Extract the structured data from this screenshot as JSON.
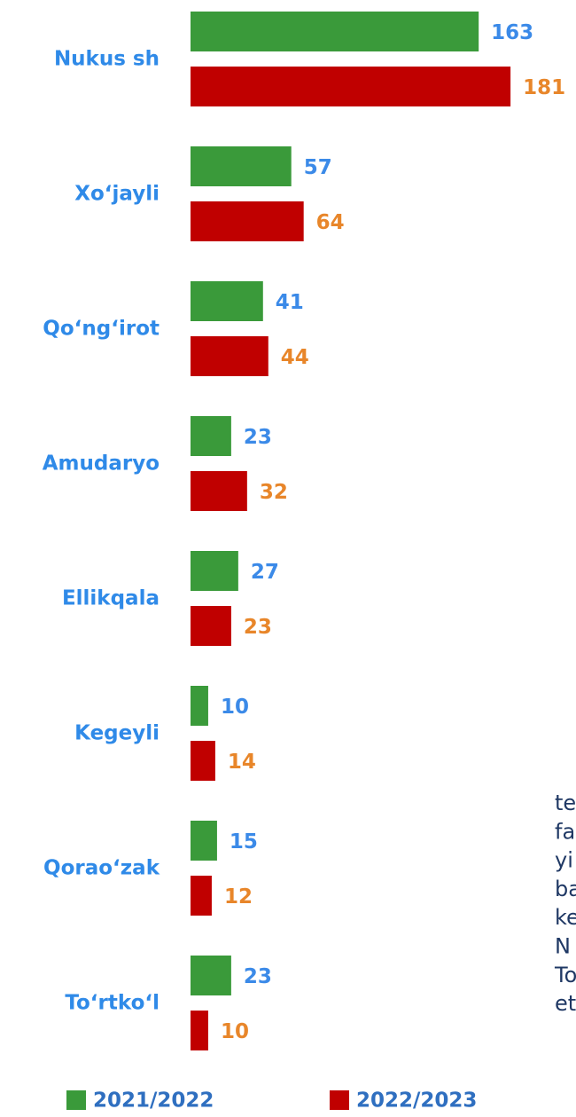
{
  "chart_data": {
    "type": "bar",
    "orientation": "horizontal",
    "categories": [
      "Nukus sh",
      "Xo‘jayli",
      "Qo‘ng‘irot",
      "Amudaryo",
      "Ellikqala",
      "Kegeyli",
      "Qorao‘zak",
      "To‘rtko‘l"
    ],
    "series": [
      {
        "name": "2021/2022",
        "color": "#3a9a3a",
        "label_color": "#3b8ae8",
        "values": [
          163,
          57,
          41,
          23,
          27,
          10,
          15,
          23
        ]
      },
      {
        "name": "2022/2023",
        "color": "#c00000",
        "label_color": "#e8862a",
        "values": [
          181,
          64,
          44,
          32,
          23,
          14,
          12,
          10
        ]
      }
    ],
    "legend": "bottom"
  },
  "side_text": [
    "te",
    "fa",
    "yi",
    "ba",
    "ke",
    "N",
    "To",
    "et"
  ]
}
